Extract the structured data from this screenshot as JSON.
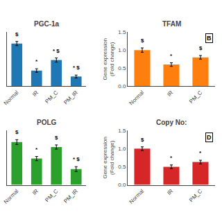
{
  "chart_data": [
    {
      "type": "bar",
      "title": "PGC-1a",
      "categories": [
        "Normal",
        "IR",
        "PM_C",
        "PM_IR"
      ],
      "values": [
        1.22,
        0.45,
        0.75,
        0.28
      ],
      "errors": [
        0.06,
        0.05,
        0.06,
        0.04
      ],
      "annotations": [
        "$",
        "*",
        "* $",
        "* $"
      ],
      "ylim": [
        0,
        1.55
      ],
      "yticks": [],
      "tick_labels": "x",
      "grid": false
    },
    {
      "type": "bar",
      "title": "TFAM",
      "label": "B",
      "categories": [
        "Normal",
        "IR",
        "PM_C"
      ],
      "values": [
        1.0,
        0.6,
        0.8
      ],
      "errors": [
        0.06,
        0.05,
        0.05
      ],
      "annotations": [
        "$",
        "*",
        "$"
      ],
      "ylabel": "Gene expression\n(Fold change)",
      "ylim": [
        0.0,
        1.5
      ],
      "yticks": [
        {
          "value": 0.0,
          "label": "0.0"
        },
        0.5,
        {
          "value": 1.0,
          "label": "1.0"
        },
        1.5
      ],
      "grid": false
    },
    {
      "type": "bar",
      "title": "POLG",
      "categories": [
        "Normal",
        "IR",
        "PM_C",
        "PM_IR"
      ],
      "values": [
        1.22,
        0.75,
        1.08,
        0.45
      ],
      "errors": [
        0.07,
        0.06,
        0.06,
        0.07
      ],
      "annotations": [
        "$",
        "*",
        "$",
        "* $"
      ],
      "ylim": [
        0,
        1.55
      ],
      "yticks": [],
      "tick_labels": "x",
      "grid": false
    },
    {
      "type": "bar",
      "title": "Copy No:",
      "label": "D",
      "categories": [
        "Normal",
        "IR",
        "PM_C"
      ],
      "values": [
        1.0,
        0.5,
        0.63
      ],
      "errors": [
        0.05,
        0.05,
        0.05
      ],
      "annotations": [
        "$",
        "*",
        "*"
      ],
      "ylabel": "Gene expression\n(Fold change)",
      "ylim": [
        0.0,
        1.5
      ],
      "yticks": [
        {
          "value": 0.0,
          "label": "0.0"
        },
        0.5,
        {
          "value": 1.0,
          "label": "1.0"
        },
        1.5
      ],
      "grid": false
    }
  ]
}
